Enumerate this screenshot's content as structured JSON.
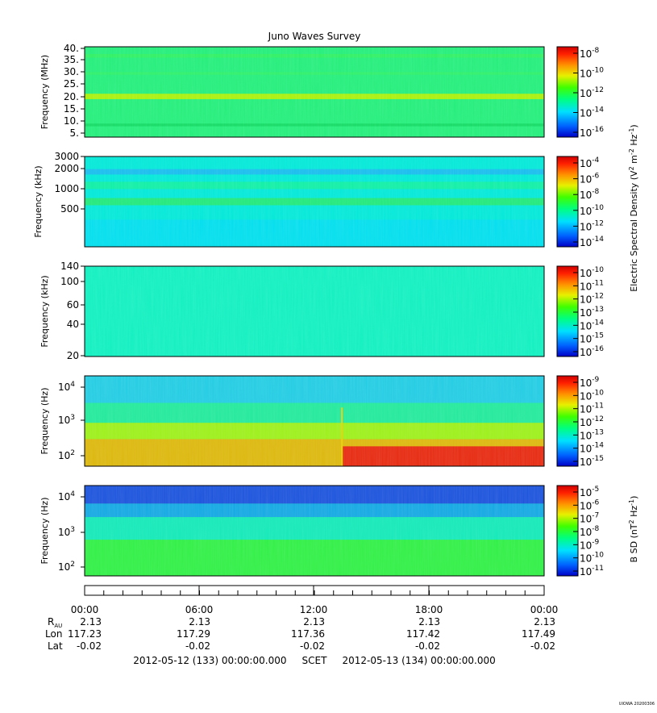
{
  "title": "Juno Waves Survey",
  "panels": [
    {
      "ylabel": "Frequency (MHz)",
      "yticks": [
        "40.",
        "35.",
        "30.",
        "25.",
        "20.",
        "15.",
        "10.",
        "5."
      ],
      "colorbar_ticks": [
        "10-8",
        "10-10",
        "10-12",
        "10-14",
        "10-16"
      ],
      "colorbar_exps": [
        "-8",
        "-10",
        "-12",
        "-14",
        "-16"
      ],
      "background_color": "#22ee7a",
      "bands": [
        {
          "y": 0.08,
          "h": 0.04,
          "color": "#30f060"
        },
        {
          "y": 0.28,
          "h": 0.03,
          "color": "#2ef068"
        },
        {
          "y": 0.52,
          "h": 0.06,
          "color": "#b8f000"
        },
        {
          "y": 0.85,
          "h": 0.03,
          "color": "#10d860"
        }
      ]
    },
    {
      "ylabel": "Frequency (kHz)",
      "yticks": [
        "3000",
        "2000",
        "1000",
        "500"
      ],
      "colorbar_ticks": [
        "10-4",
        "10-6",
        "10-8",
        "10-10",
        "10-12",
        "10-14"
      ],
      "colorbar_exps": [
        "-4",
        "-6",
        "-8",
        "-10",
        "-12",
        "-14"
      ],
      "background_color": "#00e8d8",
      "bands": [
        {
          "y": 0.14,
          "h": 0.06,
          "color": "#18b8f0"
        },
        {
          "y": 0.28,
          "h": 0.08,
          "color": "#10f0a0"
        },
        {
          "y": 0.46,
          "h": 0.08,
          "color": "#22e870"
        },
        {
          "y": 0.7,
          "h": 0.3,
          "color": "#00ddf0"
        }
      ]
    },
    {
      "ylabel": "Frequency (kHz)",
      "yticks": [
        "140",
        "100",
        "60",
        "40",
        "20"
      ],
      "colorbar_ticks": [
        "10-10",
        "10-11",
        "10-12",
        "10-13",
        "10-14",
        "10-15",
        "10-16"
      ],
      "colorbar_exps": [
        "-10",
        "-11",
        "-12",
        "-13",
        "-14",
        "-15",
        "-16"
      ],
      "background_color": "#10f0c0",
      "bands": []
    },
    {
      "ylabel": "Frequency (Hz)",
      "yticks": [
        "10",
        "10",
        "10"
      ],
      "ytick_exps": [
        "4",
        "3",
        "2"
      ],
      "colorbar_ticks": [
        "10-9",
        "10-10",
        "10-11",
        "10-12",
        "10-13",
        "10-14",
        "10-15"
      ],
      "colorbar_exps": [
        "-9",
        "-10",
        "-11",
        "-12",
        "-13",
        "-14",
        "-15"
      ],
      "background_color": "#30ee70",
      "bands": [
        {
          "y": 0.0,
          "h": 0.3,
          "color": "#20c8f0"
        },
        {
          "y": 0.3,
          "h": 0.22,
          "color": "#20e8a0"
        },
        {
          "y": 0.52,
          "h": 0.18,
          "color": "#a8ee10"
        },
        {
          "y": 0.7,
          "h": 0.3,
          "color": "#f0b000"
        }
      ],
      "event_color": "#e81010"
    },
    {
      "ylabel": "Frequency (Hz)",
      "yticks": [
        "10",
        "10",
        "10"
      ],
      "ytick_exps": [
        "4",
        "3",
        "2"
      ],
      "colorbar_ticks": [
        "10-5",
        "10-6",
        "10-7",
        "10-8",
        "10-9",
        "10-10",
        "10-11"
      ],
      "colorbar_exps": [
        "-5",
        "-6",
        "-7",
        "-8",
        "-9",
        "-10",
        "-11"
      ],
      "background_color": "#30ee70",
      "bands": [
        {
          "y": 0.0,
          "h": 0.2,
          "color": "#1840e8"
        },
        {
          "y": 0.2,
          "h": 0.15,
          "color": "#10a0f0"
        },
        {
          "y": 0.35,
          "h": 0.25,
          "color": "#10e8c0"
        },
        {
          "y": 0.6,
          "h": 0.4,
          "color": "#30ee40"
        }
      ]
    }
  ],
  "colorbar_labels": {
    "electric": "Electric Spectral Density (V",
    "electric_full": "Electric Spectral Density (V2 m-2 Hz-1)",
    "magnetic_full": "B SD (nT2 Hz-1)"
  },
  "x_axis": {
    "time_ticks": [
      "00:00",
      "06:00",
      "12:00",
      "18:00",
      "00:00"
    ],
    "rau_label": "R",
    "rau_sub": "AU",
    "rau": [
      "2.13",
      "2.13",
      "2.13",
      "2.13",
      "2.13"
    ],
    "lon_label": "Lon",
    "lon": [
      "117.23",
      "117.29",
      "117.36",
      "117.42",
      "117.49"
    ],
    "lat_label": "Lat",
    "lat": [
      "-0.02",
      "-0.02",
      "-0.02",
      "-0.02",
      "-0.02"
    ],
    "footer": "2012-05-12 (133) 00:00:00.000     SCET     2012-05-13 (134) 00:00:00.000"
  },
  "stamp": "UIOWA 20200306",
  "chart_data": {
    "type": "heatmap",
    "title": "Juno Waves Survey",
    "x_range": [
      "2012-05-12 00:00",
      "2012-05-13 00:00"
    ],
    "x_ticks": [
      "00:00",
      "06:00",
      "12:00",
      "18:00",
      "00:00"
    ],
    "panels": [
      {
        "ylabel": "Frequency (MHz)",
        "ylim": [
          3,
          42
        ],
        "colorbar": "10^-17 to 10^-7 V2 m-2 Hz-1"
      },
      {
        "ylabel": "Frequency (kHz)",
        "ylim": [
          140,
          3000
        ],
        "colorbar": "10^-14 to 10^-3 V2 m-2 Hz-1"
      },
      {
        "ylabel": "Frequency (kHz)",
        "ylim": [
          20,
          140
        ],
        "colorbar": "10^-16 to 10^-10 V2 m-2 Hz-1"
      },
      {
        "ylabel": "Frequency (Hz)",
        "ylim": [
          50,
          20000
        ],
        "scale": "log",
        "colorbar": "10^-15 to 10^-9 V2 m-2 Hz-1",
        "event_start": "2012-05-12 13:45"
      },
      {
        "ylabel": "Frequency (Hz)",
        "ylim": [
          50,
          20000
        ],
        "scale": "log",
        "colorbar": "10^-11 to 10^-5 nT2 Hz-1"
      }
    ],
    "ephemeris": {
      "R_AU": [
        2.13,
        2.13,
        2.13,
        2.13,
        2.13
      ],
      "Lon": [
        117.23,
        117.29,
        117.36,
        117.42,
        117.49
      ],
      "Lat": [
        -0.02,
        -0.02,
        -0.02,
        -0.02,
        -0.02
      ]
    }
  }
}
